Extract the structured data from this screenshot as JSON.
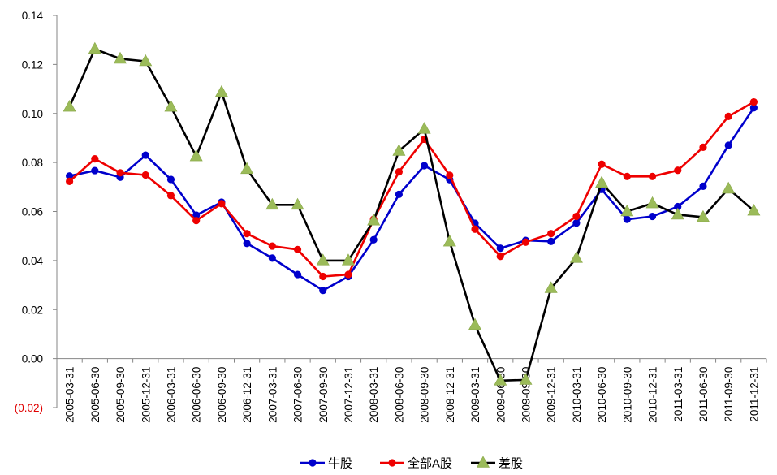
{
  "chart_data": {
    "type": "line",
    "title": "",
    "xlabel": "",
    "ylabel": "",
    "ylim": [
      -0.02,
      0.14
    ],
    "yticks": [
      -0.02,
      0.0,
      0.02,
      0.04,
      0.06,
      0.08,
      0.1,
      0.12,
      0.14
    ],
    "ytick_labels": [
      "(0.02)",
      "0.00",
      "0.02",
      "0.04",
      "0.06",
      "0.08",
      "0.10",
      "0.12",
      "0.14"
    ],
    "grid": false,
    "legend_position": "bottom-center",
    "categories": [
      "2005-03-31",
      "2005-06-30",
      "2005-09-30",
      "2005-12-31",
      "2006-03-31",
      "2006-06-30",
      "2006-09-30",
      "2006-12-31",
      "2007-03-31",
      "2007-06-30",
      "2007-09-30",
      "2007-12-31",
      "2008-03-31",
      "2008-06-30",
      "2008-09-30",
      "2008-12-31",
      "2009-03-31",
      "2009-06-30",
      "2009-09-30",
      "2009-12-31",
      "2010-03-31",
      "2010-06-30",
      "2010-09-30",
      "2010-12-31",
      "2011-03-31",
      "2011-06-30",
      "2011-09-30",
      "2011-12-31"
    ],
    "series": [
      {
        "name": "牛股",
        "color": "#0000cc",
        "marker": "circle",
        "values": [
          0.0745,
          0.0767,
          0.074,
          0.083,
          0.0731,
          0.0585,
          0.0638,
          0.047,
          0.041,
          0.0343,
          0.0278,
          0.0335,
          0.0485,
          0.067,
          0.0787,
          0.073,
          0.0552,
          0.045,
          0.0482,
          0.0478,
          0.0553,
          0.069,
          0.0568,
          0.058,
          0.062,
          0.0703,
          0.087,
          0.1023
        ]
      },
      {
        "name": "全部A股",
        "color": "#ee0000",
        "marker": "circle",
        "values": [
          0.0723,
          0.0815,
          0.0758,
          0.0749,
          0.0665,
          0.0563,
          0.0632,
          0.051,
          0.0459,
          0.0445,
          0.0335,
          0.0343,
          0.0568,
          0.0762,
          0.0895,
          0.0748,
          0.0528,
          0.0417,
          0.0475,
          0.051,
          0.058,
          0.0793,
          0.0743,
          0.0743,
          0.0768,
          0.0862,
          0.0988,
          0.1047
        ]
      },
      {
        "name": "差股",
        "color": "#000000",
        "marker": "triangle",
        "marker_color": "#9bbb59",
        "values": [
          0.1027,
          0.1263,
          0.1223,
          0.1213,
          0.1027,
          0.0825,
          0.1087,
          0.0773,
          0.0627,
          0.0627,
          0.04,
          0.04,
          0.0563,
          0.0847,
          0.0937,
          0.0477,
          0.0137,
          -0.009,
          -0.0087,
          0.0287,
          0.041,
          0.0717,
          0.06,
          0.0633,
          0.0587,
          0.0577,
          0.0693,
          0.0603
        ]
      }
    ]
  }
}
